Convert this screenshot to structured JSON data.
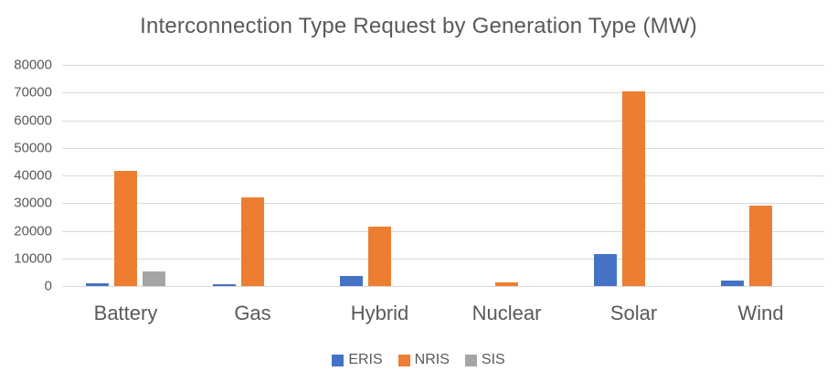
{
  "chart_data": {
    "type": "bar",
    "title": "Interconnection Type Request by Generation Type (MW)",
    "categories": [
      "Battery",
      "Gas",
      "Hybrid",
      "Nuclear",
      "Solar",
      "Wind"
    ],
    "series": [
      {
        "name": "ERIS",
        "color": "#4472C4",
        "values": [
          1000,
          800,
          3600,
          0,
          11600,
          2000
        ]
      },
      {
        "name": "NRIS",
        "color": "#ED7D31",
        "values": [
          41700,
          32100,
          21500,
          1300,
          70500,
          29100
        ]
      },
      {
        "name": "SIS",
        "color": "#A5A5A5",
        "values": [
          5300,
          0,
          0,
          0,
          0,
          0
        ]
      }
    ],
    "xlabel": "",
    "ylabel": "",
    "ylim": [
      0,
      80000
    ],
    "ytick_step": 10000,
    "ytick_labels": [
      "0",
      "10000",
      "20000",
      "30000",
      "40000",
      "50000",
      "60000",
      "70000",
      "80000"
    ],
    "grid": true,
    "legend_position": "bottom"
  },
  "colors": {
    "gridline": "#D9D9D9",
    "text": "#595959",
    "background": "#FFFFFF"
  }
}
